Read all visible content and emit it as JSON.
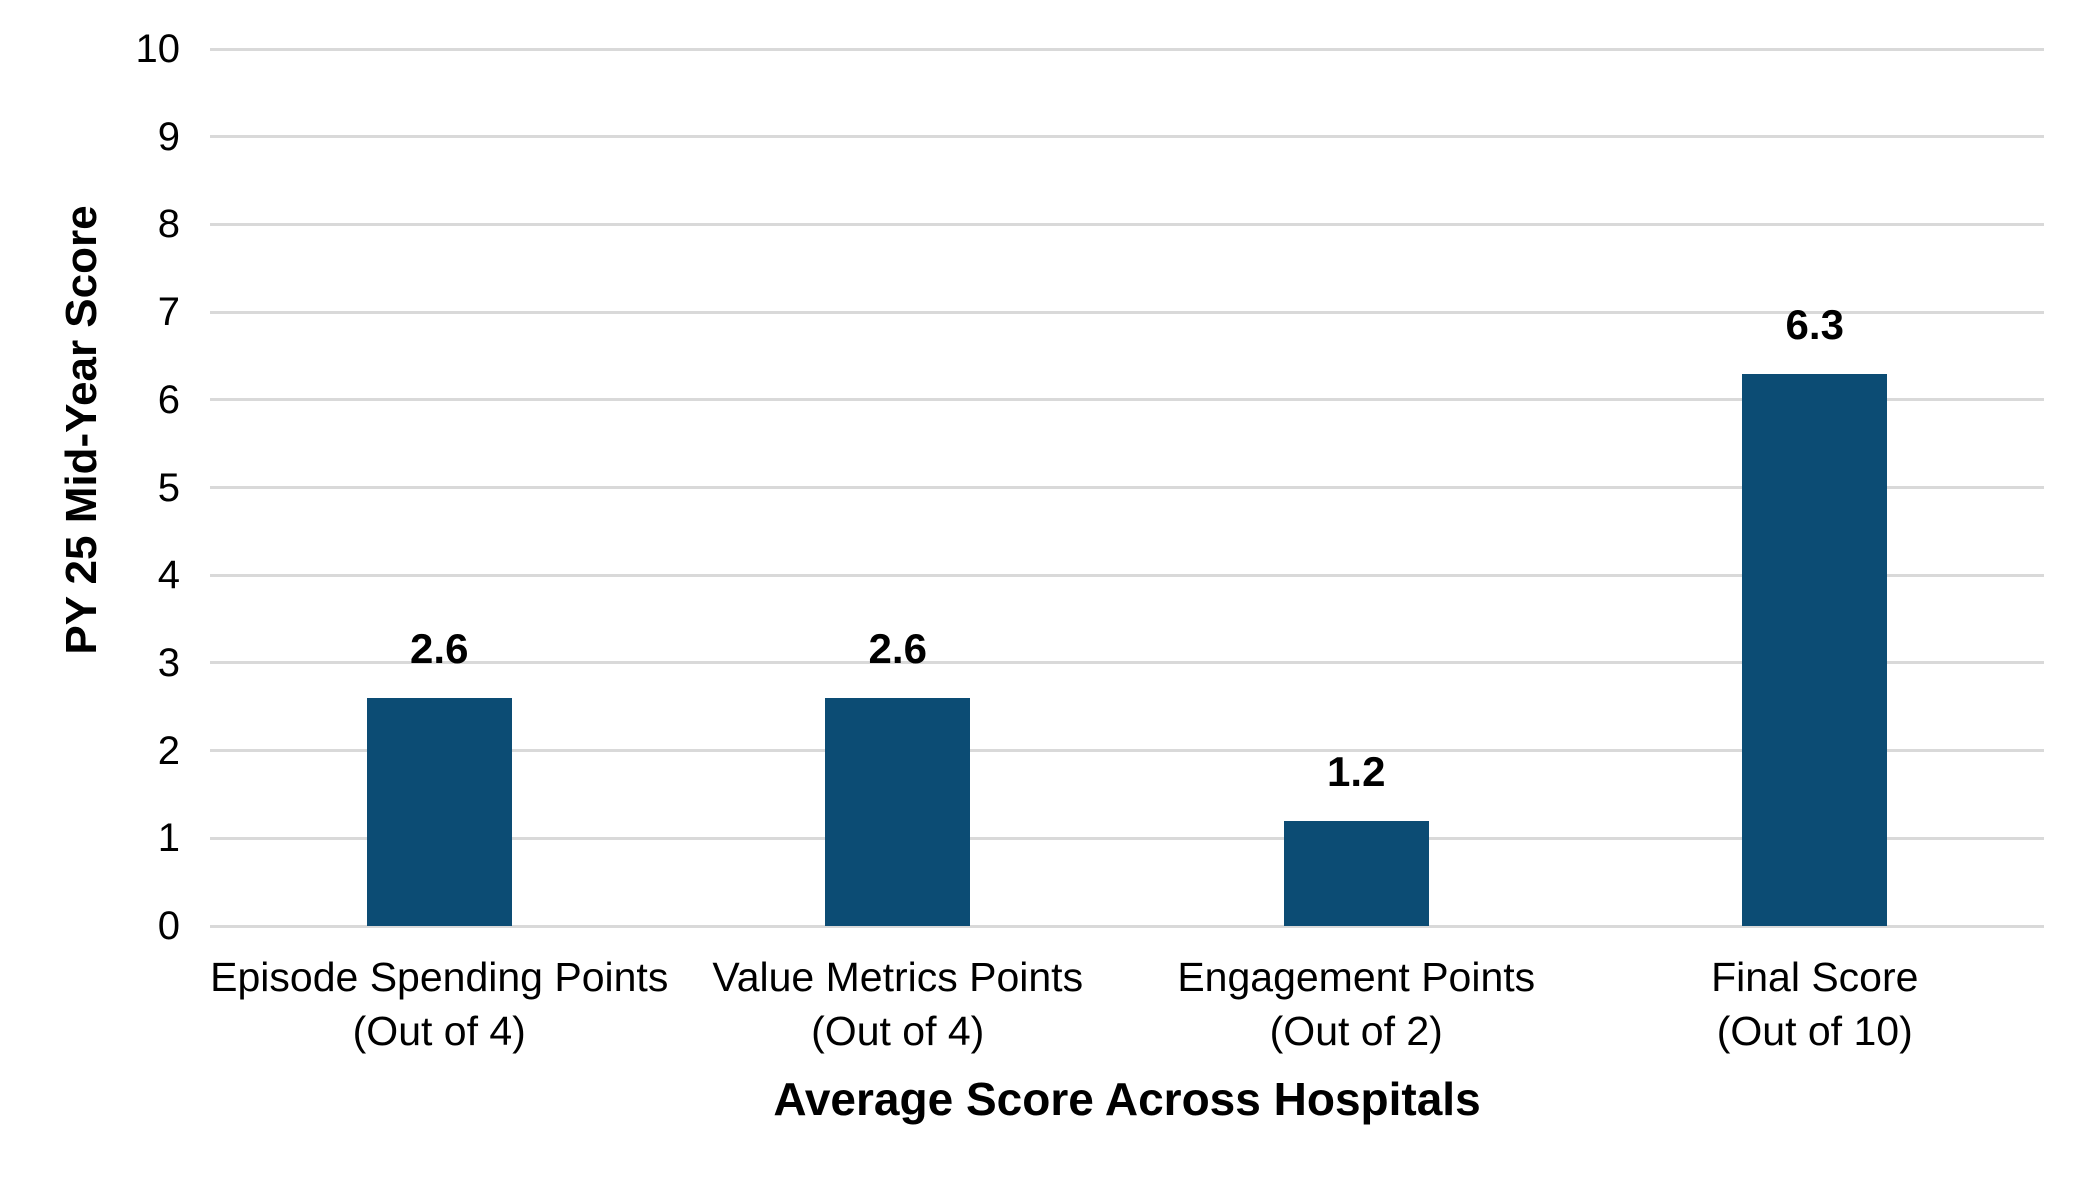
{
  "chart_data": {
    "type": "bar",
    "title": "",
    "ylabel": "PY 25 Mid-Year Score",
    "xlabel": "Average Score Across Hospitals",
    "ylim": [
      0,
      10
    ],
    "yticks": [
      0,
      1,
      2,
      3,
      4,
      5,
      6,
      7,
      8,
      9,
      10
    ],
    "grid": true,
    "legend": false,
    "colors": {
      "bar": "#0C4C74",
      "gridline": "#D9D9D9",
      "text": "#000000",
      "background": "#FFFFFF"
    },
    "categories": [
      {
        "label": "Episode Spending Points",
        "sublabel": "(Out of 4)"
      },
      {
        "label": "Value Metrics Points",
        "sublabel": "(Out of 4)"
      },
      {
        "label": "Engagement Points",
        "sublabel": "(Out of 2)"
      },
      {
        "label": "Final Score",
        "sublabel": "(Out of 10)"
      }
    ],
    "series": [
      {
        "name": "Average Score Across Hospitals",
        "values": [
          2.6,
          2.6,
          1.2,
          6.3
        ]
      }
    ],
    "data_labels": [
      "2.6",
      "2.6",
      "1.2",
      "6.3"
    ]
  }
}
